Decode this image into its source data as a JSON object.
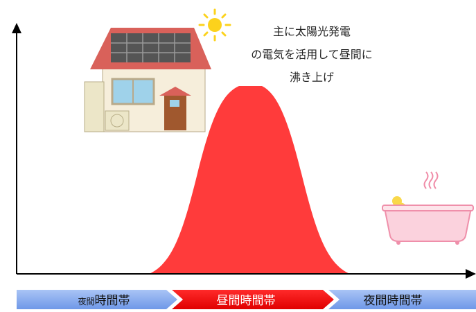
{
  "annotation": {
    "lines": [
      "主に太陽光発電",
      "の電気を活用して昼間に",
      "沸き上げ"
    ]
  },
  "timeline": [
    {
      "small": "夜間",
      "label": "時間帯"
    },
    {
      "label": "昼間時間帯"
    },
    {
      "label": "夜間時間帯"
    }
  ]
}
